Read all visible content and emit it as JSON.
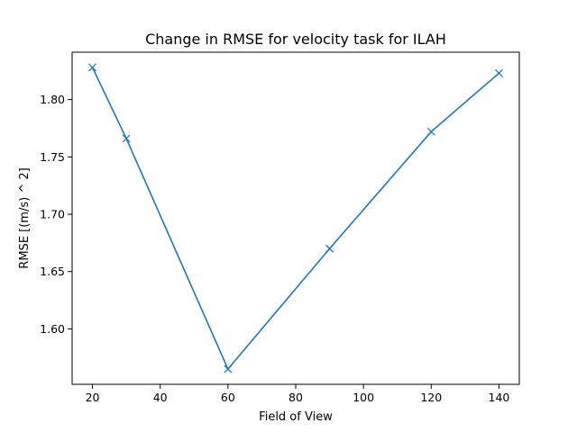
{
  "chart_data": {
    "type": "line",
    "title": "Change in RMSE for velocity task for ILAH",
    "xlabel": "Field of View",
    "ylabel": "RMSE [(m/s) ^ 2]",
    "x": [
      20,
      30,
      60,
      90,
      120,
      140
    ],
    "series": [
      {
        "values": [
          1.828,
          1.766,
          1.565,
          1.67,
          1.772,
          1.823
        ],
        "color": "#1f77b4",
        "marker": "x"
      }
    ],
    "xlim": [
      14,
      146
    ],
    "ylim": [
      1.5517,
      1.8413
    ],
    "xticks": [
      20,
      40,
      60,
      80,
      100,
      120,
      140
    ],
    "xtick_labels": [
      "20",
      "40",
      "60",
      "80",
      "100",
      "120",
      "140"
    ],
    "yticks": [
      1.6,
      1.65,
      1.7,
      1.75,
      1.8
    ],
    "ytick_labels": [
      "1.60",
      "1.65",
      "1.70",
      "1.75",
      "1.80"
    ],
    "grid": false,
    "legend": "none"
  }
}
